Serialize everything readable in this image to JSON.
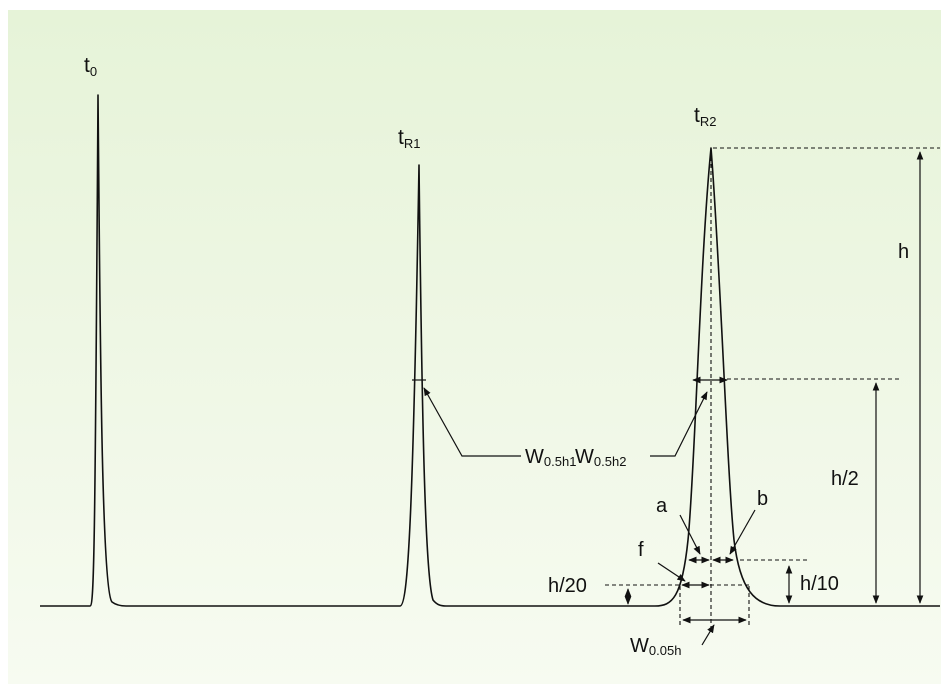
{
  "colors": {
    "background_top": "#e6f3d8",
    "background_bottom": "#f7fbf1",
    "ink": "#111111"
  },
  "labels": {
    "t0": {
      "main": "t",
      "sub": "0"
    },
    "tR1": {
      "main": "t",
      "sub": "R1"
    },
    "tR2": {
      "main": "t",
      "sub": "R2"
    },
    "w05h1": {
      "main": "W",
      "sub": "0.5h1"
    },
    "w05h2": {
      "main": "W",
      "sub": "0.5h2"
    },
    "w005h": {
      "main": "W",
      "sub": "0.05h"
    },
    "h": "h",
    "h_half": "h/2",
    "h_tenth": "h/10",
    "h_twentieth": "h/20",
    "a": "a",
    "b": "b",
    "f": "f"
  }
}
